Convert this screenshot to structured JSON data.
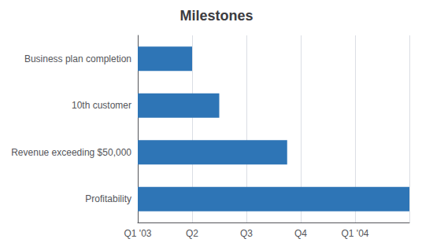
{
  "chart_data": {
    "type": "bar",
    "title": "Milestones",
    "orientation": "horizontal",
    "categories": [
      "Profitability",
      "Revenue exceeding $50,000",
      "10th customer",
      "Business plan completion"
    ],
    "values": [
      5.0,
      2.75,
      1.5,
      1.0
    ],
    "color": "#2E75B6",
    "xlim": [
      0,
      5.0
    ],
    "xticks": [
      {
        "value": 0,
        "label": "Q1 '03"
      },
      {
        "value": 1,
        "label": "Q2"
      },
      {
        "value": 2,
        "label": "Q3"
      },
      {
        "value": 3,
        "label": "Q4"
      },
      {
        "value": 4,
        "label": "Q1 '04"
      }
    ],
    "grid": true
  }
}
